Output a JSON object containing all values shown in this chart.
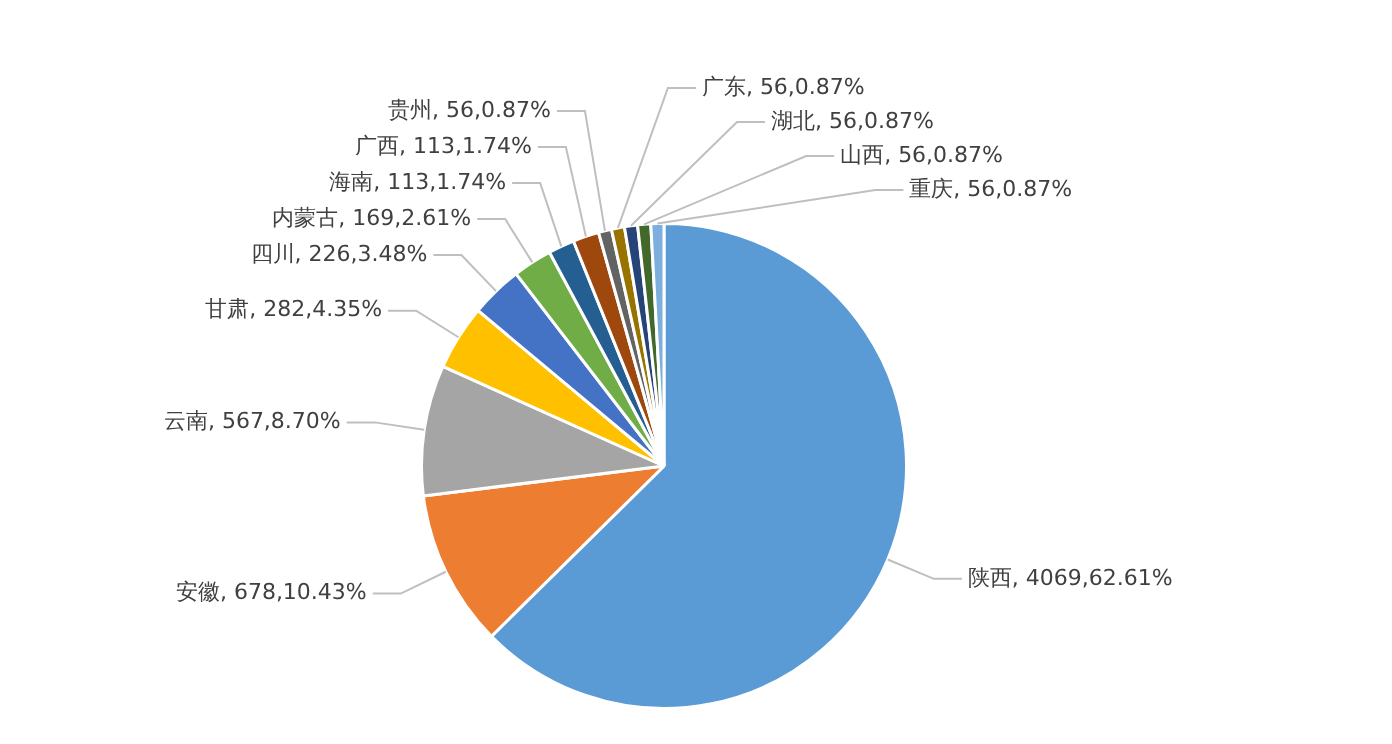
{
  "chart_data": {
    "type": "pie",
    "categories": [
      "陕西",
      "安徽",
      "云南",
      "甘肃",
      "四川",
      "内蒙古",
      "海南",
      "广西",
      "贵州",
      "广东",
      "湖北",
      "山西",
      "重庆"
    ],
    "values": [
      62.61,
      10.43,
      8.7,
      4.35,
      3.48,
      2.61,
      1.74,
      1.74,
      0.87,
      0.87,
      0.87,
      0.87,
      0.87
    ],
    "colors": [
      "#5b9bd5",
      "#ed7d31",
      "#a5a5a5",
      "#ffc000",
      "#4472c4",
      "#70ad47",
      "#255e91",
      "#9e480e",
      "#636363",
      "#997300",
      "#264478",
      "#43682b",
      "#7cafdd"
    ],
    "value_labels": [
      "4069,62.61%",
      "678,10.43%",
      "567,8.70%",
      "282,4.35%",
      "226,3.48%",
      "169,2.61%",
      "113,1.74%",
      "113,1.74%",
      "56,0.87%",
      "56,0.87%",
      "56,0.87%",
      "56,0.87%",
      "56,0.87%"
    ],
    "legend": false
  }
}
